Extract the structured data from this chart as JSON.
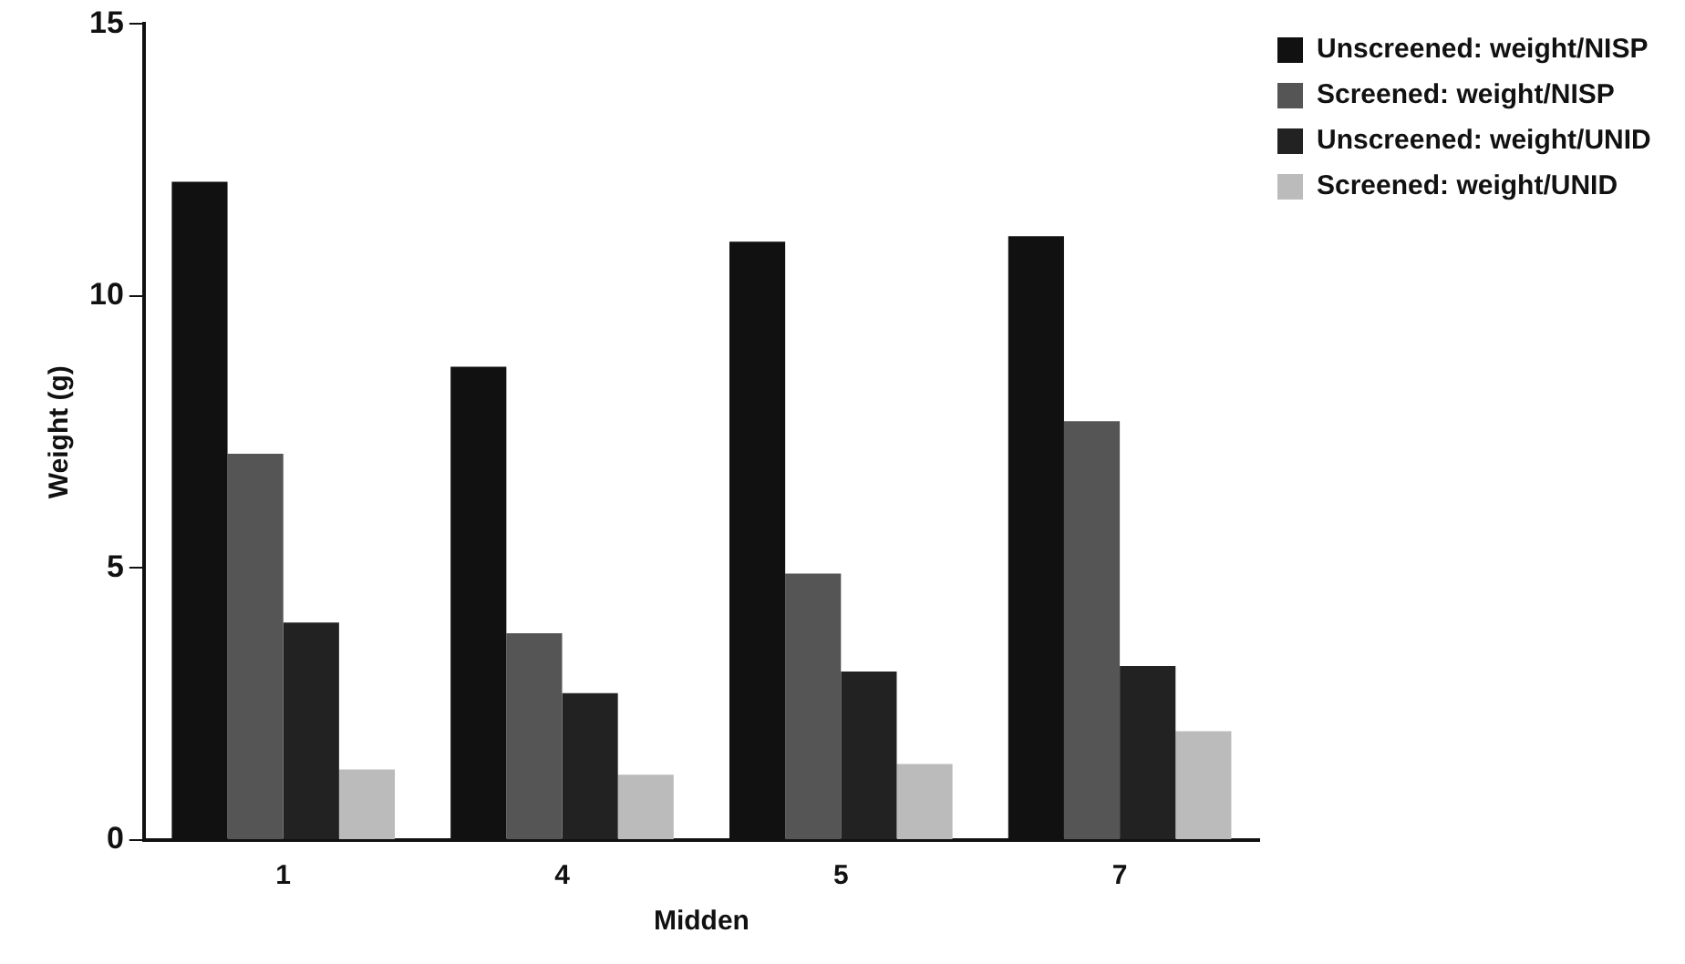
{
  "chart_data": {
    "type": "bar",
    "xlabel": "Midden",
    "ylabel": "Weight (g)",
    "categories": [
      "1",
      "4",
      "5",
      "7"
    ],
    "series": [
      {
        "name": "Unscreened: weight/NISP",
        "color": "#111111",
        "values": [
          12.1,
          8.7,
          11.0,
          11.1
        ]
      },
      {
        "name": "Screened: weight/NISP",
        "color": "#555555",
        "values": [
          7.1,
          3.8,
          4.9,
          7.7
        ]
      },
      {
        "name": "Unscreened: weight/UNID",
        "color": "#222222",
        "values": [
          4.0,
          2.7,
          3.1,
          3.2
        ]
      },
      {
        "name": "Screened: weight/UNID",
        "color": "#bbbbbb",
        "values": [
          1.3,
          1.2,
          1.4,
          2.0
        ]
      }
    ],
    "ylim": [
      0,
      15
    ],
    "yticks": [
      0,
      5,
      10,
      15
    ],
    "grid": false,
    "legend": "top right"
  }
}
